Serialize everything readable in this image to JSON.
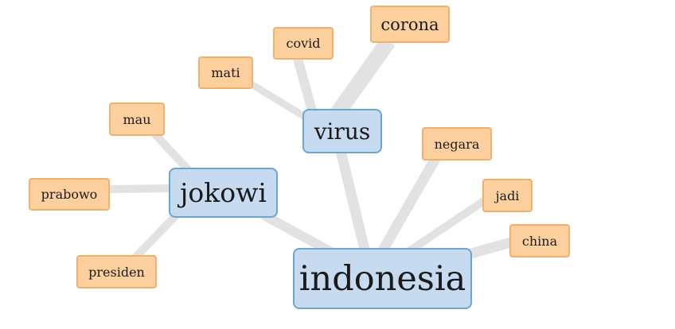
{
  "nodes": {
    "indonesia": "indonesia",
    "jokowi": "jokowi",
    "virus": "virus",
    "corona": "corona",
    "covid": "covid",
    "mati": "mati",
    "mau": "mau",
    "prabowo": "prabowo",
    "presiden": "presiden",
    "negara": "negara",
    "jadi": "jadi",
    "china": "china"
  },
  "colors": {
    "main_fill": "#c6dbf0",
    "main_border": "#6aa7cf",
    "leaf_fill": "#fdd09d",
    "leaf_border": "#f1b06c",
    "edge": "#e2e2e2"
  }
}
